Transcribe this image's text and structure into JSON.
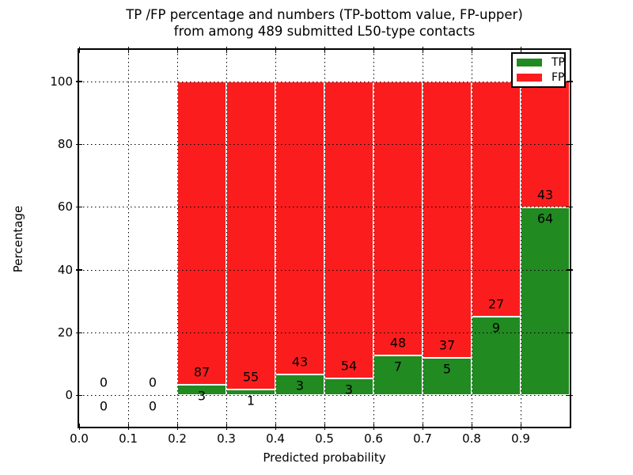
{
  "title": {
    "line1": "TP /FP percentage and numbers (TP-bottom value, FP-upper)",
    "line2": "from among 489 submitted L50-type contacts"
  },
  "legend": {
    "position": "upper right",
    "items": [
      {
        "label": "TP",
        "color": "#218a21"
      },
      {
        "label": "FP",
        "color": "#fb1d1d"
      }
    ]
  },
  "chart_data": {
    "type": "bar",
    "stacked": true,
    "title": "TP /FP percentage and numbers (TP-bottom value, FP-upper) from among 489 submitted L50-type contacts",
    "xlabel": "Predicted probability",
    "ylabel": "Percentage",
    "xlim": [
      0.0,
      1.0
    ],
    "ylim": [
      -10,
      110
    ],
    "grid": true,
    "x_tick_labels": [
      "0.0",
      "0.1",
      "0.2",
      "0.3",
      "0.4",
      "0.5",
      "0.6",
      "0.7",
      "0.8",
      "0.9"
    ],
    "y_tick_values": [
      0,
      20,
      40,
      60,
      80,
      100
    ],
    "total_contacts": 489,
    "colors": {
      "tp": "#218a21",
      "fp": "#fb1d1d",
      "bar_edge": "#ffffff"
    },
    "bins": [
      {
        "range": [
          0.0,
          0.1
        ],
        "tp": 0,
        "fp": 0,
        "tp_percent": null
      },
      {
        "range": [
          0.1,
          0.2
        ],
        "tp": 0,
        "fp": 0,
        "tp_percent": null
      },
      {
        "range": [
          0.2,
          0.3
        ],
        "tp": 3,
        "fp": 87,
        "tp_percent": 3.33
      },
      {
        "range": [
          0.3,
          0.4
        ],
        "tp": 1,
        "fp": 55,
        "tp_percent": 1.79
      },
      {
        "range": [
          0.4,
          0.5
        ],
        "tp": 3,
        "fp": 43,
        "tp_percent": 6.52
      },
      {
        "range": [
          0.5,
          0.6
        ],
        "tp": 3,
        "fp": 54,
        "tp_percent": 5.26
      },
      {
        "range": [
          0.6,
          0.7
        ],
        "tp": 7,
        "fp": 48,
        "tp_percent": 12.73
      },
      {
        "range": [
          0.7,
          0.8
        ],
        "tp": 5,
        "fp": 37,
        "tp_percent": 11.9
      },
      {
        "range": [
          0.8,
          0.9
        ],
        "tp": 9,
        "fp": 27,
        "tp_percent": 25.0
      },
      {
        "range": [
          0.9,
          1.0
        ],
        "tp": 64,
        "fp": 43,
        "tp_percent": 59.81
      }
    ]
  }
}
